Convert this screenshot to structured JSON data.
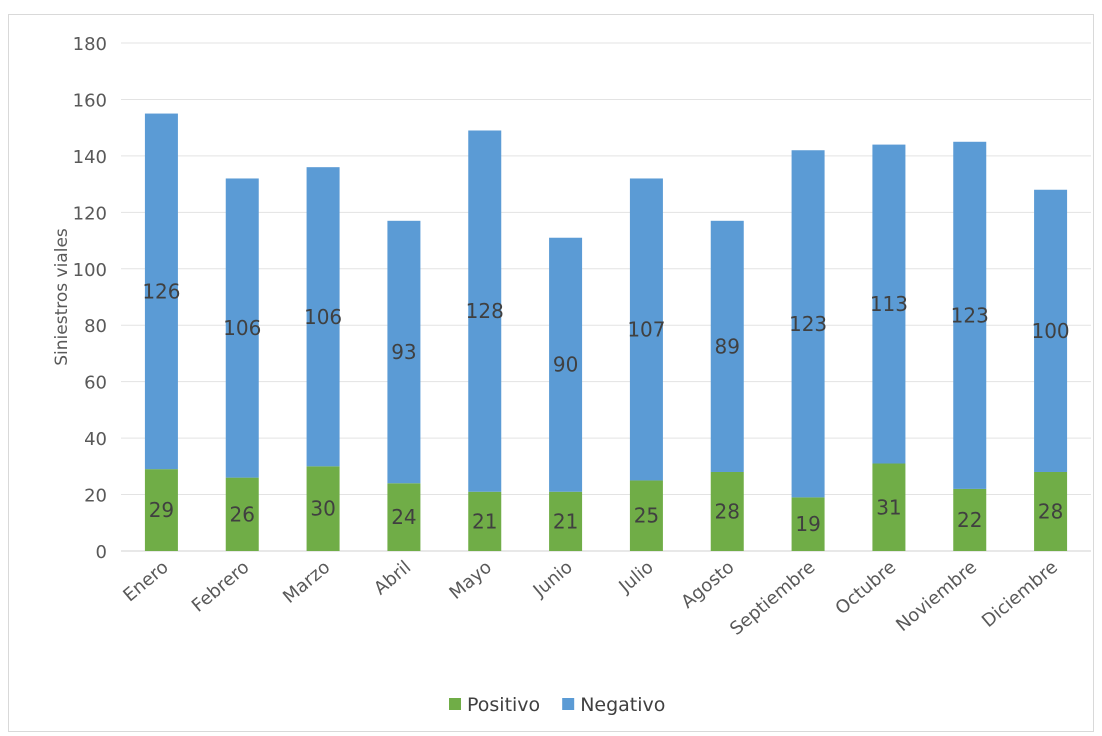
{
  "chart_data": {
    "type": "bar",
    "stacked": true,
    "title": "",
    "xlabel": "",
    "ylabel": "Siniestros viales",
    "ylim": [
      0,
      180
    ],
    "yticks": [
      0,
      20,
      40,
      60,
      80,
      100,
      120,
      140,
      160,
      180
    ],
    "grid": true,
    "legend_position": "bottom",
    "categories": [
      "Enero",
      "Febrero",
      "Marzo",
      "Abril",
      "Mayo",
      "Junio",
      "Julio",
      "Agosto",
      "Septiembre",
      "Octubre",
      "Noviembre",
      "Diciembre"
    ],
    "series": [
      {
        "name": "Positivo",
        "color": "#70ad47",
        "values": [
          29,
          26,
          30,
          24,
          21,
          21,
          25,
          28,
          19,
          31,
          22,
          28
        ]
      },
      {
        "name": "Negativo",
        "color": "#5b9bd5",
        "values": [
          126,
          106,
          106,
          93,
          128,
          90,
          107,
          89,
          123,
          113,
          123,
          100
        ]
      }
    ]
  }
}
